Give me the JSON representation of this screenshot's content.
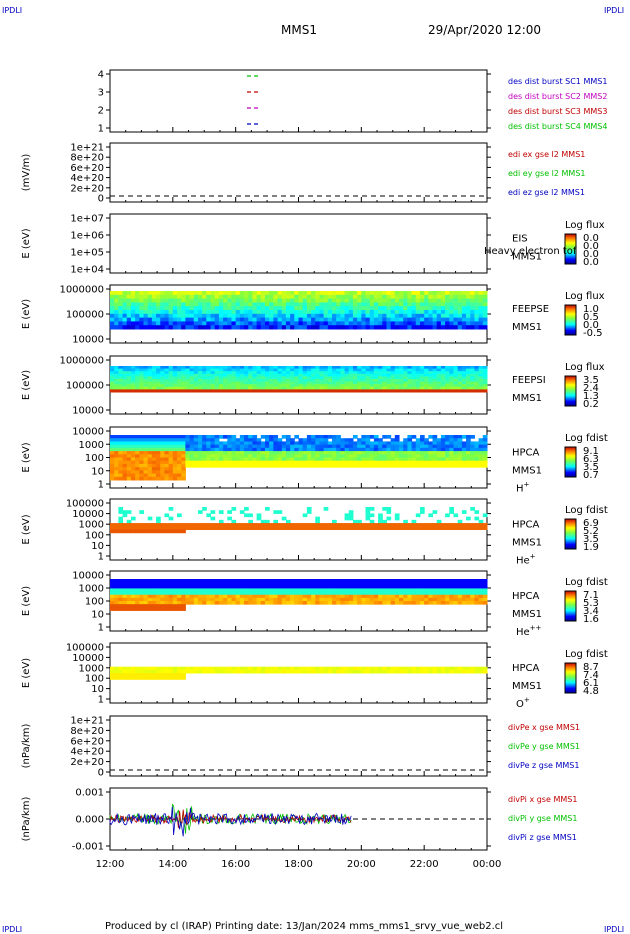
{
  "header": {
    "corner_left": "IPDLI",
    "corner_right": "IPDLI",
    "spacecraft": "MMS1",
    "datetime": "29/Apr/2020 12:00"
  },
  "footer": {
    "corner_left": "IPDLI",
    "corner_right": "IPDLI",
    "credits": "Produced by cl (IRAP)   Printing date: 13/Jan/2024   mms_mms1_srvy_vue_web2.cl"
  },
  "colors": {
    "blue": "#0000c0",
    "magenta": "#c000c0",
    "red": "#c00000",
    "green": "#00c000",
    "dred": "#c00000",
    "dgreen": "#00c000"
  },
  "chart_data": {
    "type": "spectrogram-stack",
    "xlim": [
      "12:00",
      "00:00"
    ],
    "x_ticks": [
      "12:00",
      "14:00",
      "16:00",
      "18:00",
      "20:00",
      "22:00",
      "00:00"
    ],
    "panels": [
      {
        "id": "p1",
        "type": "line",
        "ylabel": "",
        "ticks": [
          "4",
          "3",
          "2",
          "1"
        ],
        "legend": [
          {
            "text": "des dist burst SC1 MMS1",
            "color": "#0000c0"
          },
          {
            "text": "des dist burst SC2 MMS2",
            "color": "#c000c0"
          },
          {
            "text": "des dist burst SC3 MMS3",
            "color": "#c00000"
          },
          {
            "text": "des dist burst SC4 MMS4",
            "color": "#00c000"
          }
        ]
      },
      {
        "id": "p2",
        "type": "line",
        "ylabel": "(mV/m)",
        "ticks": [
          "1e+21",
          "8e+20",
          "6e+20",
          "4e+20",
          "2e+20",
          "0"
        ],
        "legend": [
          {
            "text": "edi ex gse l2 MMS1",
            "color": "#c00000"
          },
          {
            "text": "edi ey gse l2 MMS1",
            "color": "#00c000"
          },
          {
            "text": "edi ez gse l2 MMS1",
            "color": "#0000c0"
          }
        ]
      },
      {
        "id": "p3",
        "type": "spectrogram",
        "ylabel": "E (eV)",
        "ticks": [
          "1e+07",
          "1e+06",
          "1e+05",
          "1e+04"
        ],
        "label": [
          "EIS",
          "MMS1"
        ],
        "overlay_text": "Heavy electron tof",
        "cbar_title": "Log flux",
        "cbar_ticks": [
          "0.0",
          "0.0",
          "0.0",
          "0.0"
        ]
      },
      {
        "id": "p4",
        "type": "spectrogram",
        "ylabel": "E (eV)",
        "ticks": [
          "1000000",
          "100000",
          "10000"
        ],
        "label": [
          "FEEPSE",
          "MMS1"
        ],
        "cbar_title": "Log flux",
        "cbar_ticks": [
          "1.0",
          "0.5",
          "0.0",
          "-0.5"
        ]
      },
      {
        "id": "p5",
        "type": "spectrogram",
        "ylabel": "E (eV)",
        "ticks": [
          "1000000",
          "100000",
          "10000"
        ],
        "label": [
          "FEEPSI",
          "MMS1"
        ],
        "cbar_title": "Log flux",
        "cbar_ticks": [
          "3.5",
          "2.4",
          "1.3",
          "0.2"
        ]
      },
      {
        "id": "p6",
        "type": "spectrogram",
        "ylabel": "E (eV)",
        "ticks": [
          "10000",
          "1000",
          "100",
          "10",
          "1"
        ],
        "label": [
          "HPCA",
          "MMS1"
        ],
        "species": "H",
        "species_sup": "+",
        "cbar_title": "Log fdist",
        "cbar_ticks": [
          "9.1",
          "6.3",
          "3.5",
          "0.7"
        ]
      },
      {
        "id": "p7",
        "type": "spectrogram",
        "ylabel": "E (eV)",
        "ticks": [
          "100000",
          "10000",
          "1000",
          "100",
          "10",
          "1"
        ],
        "label": [
          "HPCA",
          "MMS1"
        ],
        "species": "He",
        "species_sup": "+",
        "cbar_title": "Log fdist",
        "cbar_ticks": [
          "6.9",
          "5.2",
          "3.5",
          "1.9"
        ]
      },
      {
        "id": "p8",
        "type": "spectrogram",
        "ylabel": "E (eV)",
        "ticks": [
          "10000",
          "1000",
          "100",
          "10",
          "1"
        ],
        "label": [
          "HPCA",
          "MMS1"
        ],
        "species": "He",
        "species_sup": "++",
        "cbar_title": "Log fdist",
        "cbar_ticks": [
          "7.1",
          "5.3",
          "3.4",
          "1.6"
        ]
      },
      {
        "id": "p9",
        "type": "spectrogram",
        "ylabel": "E (eV)",
        "ticks": [
          "100000",
          "10000",
          "1000",
          "100",
          "10",
          "1"
        ],
        "label": [
          "HPCA",
          "MMS1"
        ],
        "species": "O",
        "species_sup": "+",
        "cbar_title": "Log fdist",
        "cbar_ticks": [
          "8.7",
          "7.4",
          "6.1",
          "4.8"
        ]
      },
      {
        "id": "p10",
        "type": "line",
        "ylabel": "(nPa/km)",
        "ticks": [
          "1e+21",
          "8e+20",
          "6e+20",
          "4e+20",
          "2e+20",
          "0"
        ],
        "legend": [
          {
            "text": "divPe x gse MMS1",
            "color": "#c00000"
          },
          {
            "text": "divPe y gse MMS1",
            "color": "#00c000"
          },
          {
            "text": "divPe z gse MMS1",
            "color": "#0000c0"
          }
        ]
      },
      {
        "id": "p11",
        "type": "line",
        "ylabel": "(nPa/km)",
        "ticks": [
          "0.001",
          "0.000",
          "-0.001"
        ],
        "legend": [
          {
            "text": "divPi x gse MMS1",
            "color": "#c00000"
          },
          {
            "text": "divPi y gse MMS1",
            "color": "#00c000"
          },
          {
            "text": "divPi z gse MMS1",
            "color": "#0000c0"
          }
        ]
      }
    ]
  }
}
